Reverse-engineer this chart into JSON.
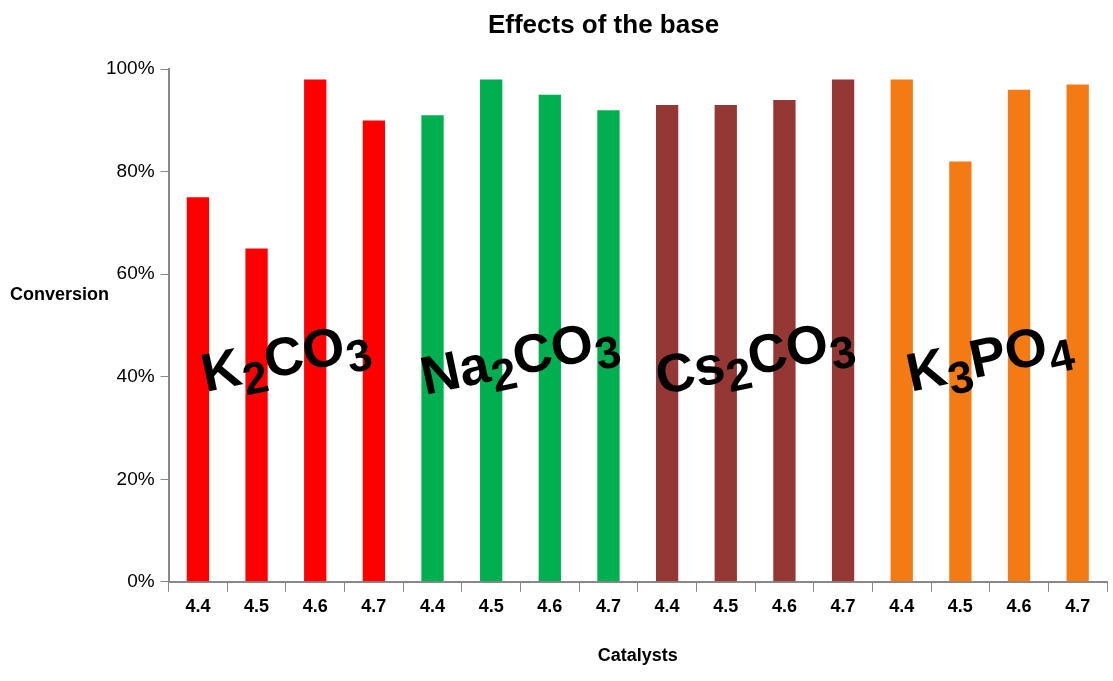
{
  "chart_data": {
    "type": "bar",
    "title": "Effects of the base",
    "xlabel": "Catalysts",
    "ylabel": "Conversion",
    "categories": [
      "4.4",
      "4.5",
      "4.6",
      "4.7",
      "4.4",
      "4.5",
      "4.6",
      "4.7",
      "4.4",
      "4.5",
      "4.6",
      "4.7",
      "4.4",
      "4.5",
      "4.6",
      "4.7"
    ],
    "values": [
      75,
      65,
      98,
      90,
      91,
      98,
      95,
      92,
      93,
      93,
      94,
      98,
      98,
      82,
      96,
      97
    ],
    "colors": [
      "#ff0000",
      "#ff0000",
      "#ff0000",
      "#ff0000",
      "#00b050",
      "#00b050",
      "#00b050",
      "#00b050",
      "#953735",
      "#953735",
      "#953735",
      "#953735",
      "#f47a14",
      "#f47a14",
      "#f47a14",
      "#f47a14"
    ],
    "ylim": [
      0,
      100
    ],
    "yticks": [
      {
        "value": 0,
        "label": "0%"
      },
      {
        "value": 20,
        "label": "20%"
      },
      {
        "value": 40,
        "label": "40%"
      },
      {
        "value": 60,
        "label": "60%"
      },
      {
        "value": 80,
        "label": "80%"
      },
      {
        "value": 100,
        "label": "100%"
      }
    ],
    "grid": false,
    "legend": false,
    "annotations": [
      "K$_{2}$CO$_{3}$",
      "Na$_{2}$CO$_{3}$",
      "Cs$_{2}$CO$_{3}$",
      "K$_{3}$PO$_{4}$"
    ]
  }
}
